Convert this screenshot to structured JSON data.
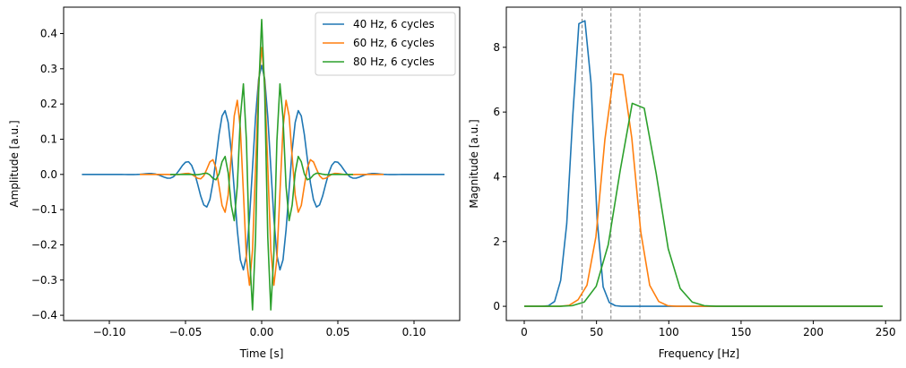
{
  "chart_data": [
    {
      "type": "line",
      "xlabel": "Time [s]",
      "ylabel": "Amplitude [a.u.]",
      "xlim": [
        -0.13,
        0.13
      ],
      "ylim": [
        -0.415,
        0.475
      ],
      "xticks": [
        -0.1,
        -0.05,
        0.0,
        0.05,
        0.1
      ],
      "xtick_labels": [
        "−0.10",
        "−0.05",
        "0.00",
        "0.05",
        "0.10"
      ],
      "yticks": [
        -0.4,
        -0.3,
        -0.2,
        -0.1,
        0.0,
        0.1,
        0.2,
        0.3,
        0.4
      ],
      "ytick_labels": [
        "−0.4",
        "−0.3",
        "−0.2",
        "−0.1",
        "0.0",
        "0.1",
        "0.2",
        "0.3",
        "0.4"
      ],
      "grid": false,
      "legend": "top-right",
      "series": [
        {
          "name": "40 Hz, 6 cycles",
          "color": "#1f77b4",
          "freq": 40,
          "cycles": 6,
          "peak_amplitude": 0.31,
          "x_range": [
            -0.119,
            0.119
          ]
        },
        {
          "name": "60 Hz, 6 cycles",
          "color": "#ff7f0e",
          "freq": 60,
          "cycles": 6,
          "peak_amplitude": 0.36,
          "x_range": [
            -0.08,
            0.08
          ]
        },
        {
          "name": "80 Hz, 6 cycles",
          "color": "#2ca02c",
          "freq": 80,
          "cycles": 6,
          "peak_amplitude": 0.44,
          "x_range": [
            -0.06,
            0.06
          ]
        }
      ]
    },
    {
      "type": "line",
      "xlabel": "Frequency [Hz]",
      "ylabel": "Magnitude [a.u.]",
      "xlim": [
        -12.4,
        260.4
      ],
      "ylim": [
        -0.44,
        9.24
      ],
      "xticks": [
        0,
        50,
        100,
        150,
        200,
        250
      ],
      "xtick_labels": [
        "0",
        "50",
        "100",
        "150",
        "200",
        "250"
      ],
      "yticks": [
        0,
        2,
        4,
        6,
        8
      ],
      "ytick_labels": [
        "0",
        "2",
        "4",
        "6",
        "8"
      ],
      "grid": false,
      "vlines": [
        {
          "x": 40,
          "color": "#808080",
          "style": "dashed"
        },
        {
          "x": 60,
          "color": "#808080",
          "style": "dashed"
        },
        {
          "x": 80,
          "color": "#808080",
          "style": "dashed"
        }
      ],
      "series": [
        {
          "color": "#1f77b4",
          "x": [
            0,
            4.2,
            8.4,
            12.6,
            16.8,
            21,
            25.2,
            29.4,
            33.6,
            37.8,
            42,
            46.2,
            50.4,
            54.6,
            58.8,
            63,
            67.2,
            71.4,
            80,
            100,
            150,
            200,
            248
          ],
          "y": [
            0,
            0,
            0,
            0,
            0.02,
            0.15,
            0.8,
            2.55,
            5.9,
            8.73,
            8.82,
            6.9,
            2.7,
            0.6,
            0.12,
            0.02,
            0,
            0,
            0,
            0,
            0,
            0,
            0
          ]
        },
        {
          "color": "#ff7f0e",
          "x": [
            0,
            6.2,
            12.4,
            18.6,
            24.8,
            31,
            37.2,
            43.4,
            49.6,
            55.8,
            62,
            68.2,
            74.4,
            80.6,
            86.8,
            93,
            99.2,
            105.4,
            111.6,
            120,
            150,
            200,
            248
          ],
          "y": [
            0,
            0,
            0,
            0,
            0,
            0.03,
            0.2,
            0.65,
            2.15,
            5.15,
            7.18,
            7.15,
            5.2,
            2.3,
            0.65,
            0.15,
            0.02,
            0,
            0,
            0,
            0,
            0,
            0
          ]
        },
        {
          "color": "#2ca02c",
          "x": [
            0,
            8.3,
            16.6,
            24.9,
            33.2,
            41.5,
            49.8,
            58.1,
            66.4,
            74.7,
            83,
            91.3,
            99.6,
            107.9,
            116.2,
            124.5,
            132.8,
            150,
            200,
            248
          ],
          "y": [
            0,
            0,
            0,
            0,
            0.02,
            0.13,
            0.62,
            1.9,
            4.2,
            6.27,
            6.12,
            4.1,
            1.78,
            0.55,
            0.13,
            0.02,
            0,
            0,
            0,
            0
          ]
        }
      ]
    }
  ]
}
